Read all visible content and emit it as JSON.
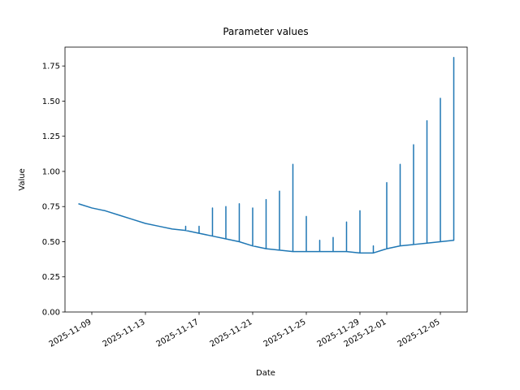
{
  "chart_data": {
    "type": "line",
    "title": "Parameter values",
    "x_label": "Date",
    "y_label": "Value",
    "color": "#1f77b4",
    "x": [
      "2025-11-08",
      "2025-11-09",
      "2025-11-10",
      "2025-11-11",
      "2025-11-12",
      "2025-11-13",
      "2025-11-14",
      "2025-11-15",
      "2025-11-16",
      "2025-11-16",
      "2025-11-16",
      "2025-11-17",
      "2025-11-17",
      "2025-11-17",
      "2025-11-18",
      "2025-11-18",
      "2025-11-18",
      "2025-11-19",
      "2025-11-19",
      "2025-11-19",
      "2025-11-20",
      "2025-11-20",
      "2025-11-20",
      "2025-11-21",
      "2025-11-21",
      "2025-11-21",
      "2025-11-22",
      "2025-11-22",
      "2025-11-22",
      "2025-11-23",
      "2025-11-23",
      "2025-11-23",
      "2025-11-24",
      "2025-11-24",
      "2025-11-24",
      "2025-11-25",
      "2025-11-25",
      "2025-11-25",
      "2025-11-26",
      "2025-11-26",
      "2025-11-26",
      "2025-11-27",
      "2025-11-27",
      "2025-11-27",
      "2025-11-28",
      "2025-11-28",
      "2025-11-28",
      "2025-11-29",
      "2025-11-29",
      "2025-11-29",
      "2025-11-30",
      "2025-11-30",
      "2025-11-30",
      "2025-12-01",
      "2025-12-01",
      "2025-12-01",
      "2025-12-02",
      "2025-12-02",
      "2025-12-02",
      "2025-12-03",
      "2025-12-03",
      "2025-12-03",
      "2025-12-04",
      "2025-12-04",
      "2025-12-04",
      "2025-12-05",
      "2025-12-05",
      "2025-12-05",
      "2025-12-06",
      "2025-12-06",
      "2025-12-06"
    ],
    "values": [
      0.77,
      0.74,
      0.72,
      0.69,
      0.66,
      0.63,
      0.61,
      0.59,
      0.58,
      0.61,
      0.58,
      0.56,
      0.61,
      0.56,
      0.54,
      0.74,
      0.54,
      0.52,
      0.75,
      0.52,
      0.5,
      0.77,
      0.5,
      0.47,
      0.74,
      0.47,
      0.45,
      0.8,
      0.45,
      0.44,
      0.86,
      0.44,
      0.43,
      1.05,
      0.43,
      0.43,
      0.68,
      0.43,
      0.43,
      0.51,
      0.43,
      0.43,
      0.53,
      0.43,
      0.43,
      0.64,
      0.43,
      0.42,
      0.72,
      0.42,
      0.42,
      0.47,
      0.42,
      0.45,
      0.92,
      0.45,
      0.47,
      1.05,
      0.47,
      0.48,
      1.19,
      0.48,
      0.49,
      1.36,
      0.49,
      0.5,
      1.52,
      0.5,
      0.51,
      1.81,
      0.85
    ],
    "xlim": [
      "2025-11-07",
      "2025-12-07"
    ],
    "xticks": [
      "2025-11-09",
      "2025-11-13",
      "2025-11-17",
      "2025-11-21",
      "2025-11-25",
      "2025-11-29",
      "2025-12-01",
      "2025-12-05"
    ],
    "ylim": [
      0,
      1.884
    ],
    "yticks": [
      {
        "value": 0,
        "label": "0.00"
      },
      {
        "value": 0.25,
        "label": "0.25"
      },
      {
        "value": 0.5,
        "label": "0.50"
      },
      {
        "value": 0.75,
        "label": "0.75"
      },
      {
        "value": 1,
        "label": "1.00"
      },
      {
        "value": 1.25,
        "label": "1.25"
      },
      {
        "value": 1.5,
        "label": "1.50"
      },
      {
        "value": 1.75,
        "label": "1.75"
      }
    ]
  }
}
